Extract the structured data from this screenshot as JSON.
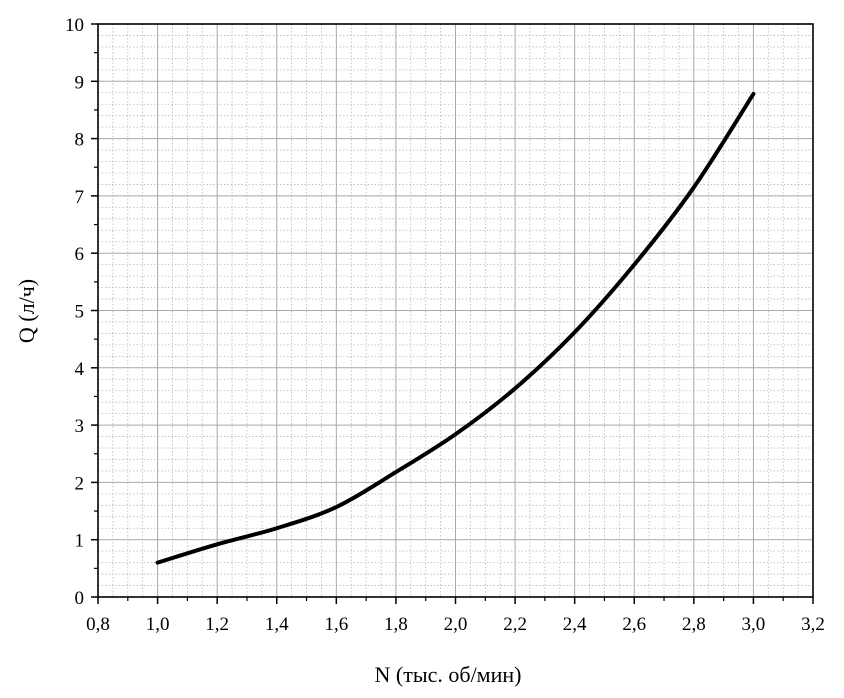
{
  "chart_data": {
    "type": "line",
    "xlabel": "N (тыс. об/мин)",
    "ylabel": "Q (л/ч)",
    "xlim": [
      0.8,
      3.2
    ],
    "ylim": [
      0,
      10
    ],
    "x_ticks": [
      "0,8",
      "1,0",
      "1,2",
      "1,4",
      "1,6",
      "1,8",
      "2,0",
      "2,2",
      "2,4",
      "2,6",
      "2,8",
      "3,0",
      "3,2"
    ],
    "y_ticks": [
      "0",
      "1",
      "2",
      "3",
      "4",
      "5",
      "6",
      "7",
      "8",
      "9",
      "10"
    ],
    "grid": true,
    "minor_grid": true,
    "series": [
      {
        "color": "#000000",
        "x": [
          1.0,
          1.2,
          1.4,
          1.6,
          1.8,
          2.0,
          2.2,
          2.4,
          2.6,
          2.8,
          3.0
        ],
        "y": [
          0.6,
          0.92,
          1.2,
          1.57,
          2.18,
          2.84,
          3.64,
          4.62,
          5.8,
          7.15,
          8.78
        ]
      }
    ]
  }
}
